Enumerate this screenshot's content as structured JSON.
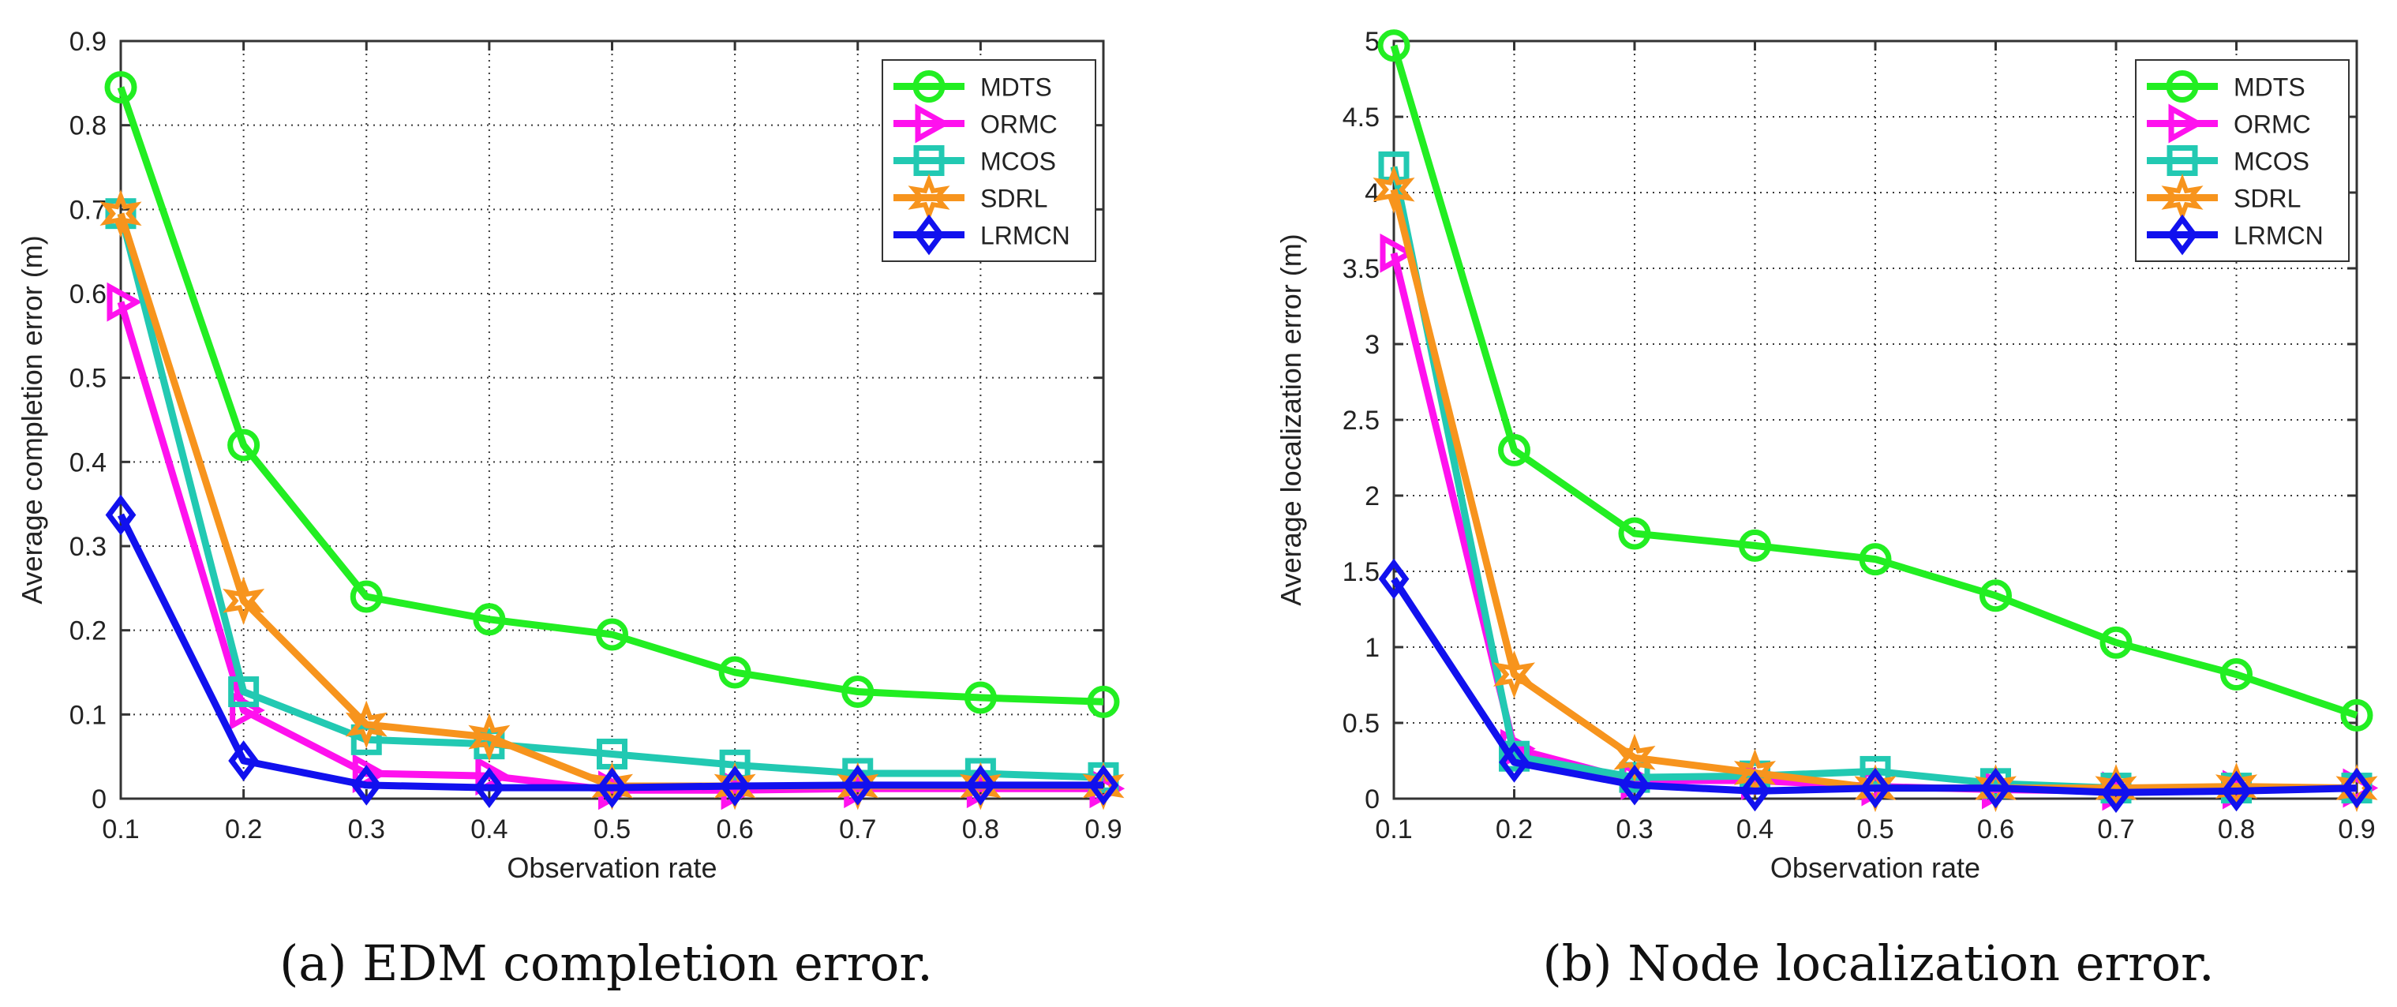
{
  "colors": {
    "MDTS": "#22ee22",
    "ORMC": "#ff11ee",
    "MCOS": "#22c9b2",
    "SDRL": "#f7941d",
    "LRMCN": "#1111ee",
    "grid": "#3a3a3a",
    "axis": "#333333"
  },
  "markers": {
    "MDTS": "circle",
    "ORMC": "triangle-right",
    "MCOS": "square",
    "SDRL": "hexagram",
    "LRMCN": "diamond"
  },
  "chart_data": [
    {
      "type": "line",
      "caption": "(a) EDM completion error.",
      "xlabel": "Observation rate",
      "ylabel": "Average completion error (m)",
      "xlim": [
        0.1,
        0.9
      ],
      "ylim": [
        0,
        0.9
      ],
      "xticks": [
        0.1,
        0.2,
        0.3,
        0.4,
        0.5,
        0.6,
        0.7,
        0.8,
        0.9
      ],
      "xtick_labels": [
        "0.1",
        "0.2",
        "0.3",
        "0.4",
        "0.5",
        "0.6",
        "0.7",
        "0.8",
        "0.9"
      ],
      "yticks": [
        0,
        0.1,
        0.2,
        0.3,
        0.4,
        0.5,
        0.6,
        0.7,
        0.8,
        0.9
      ],
      "ytick_labels": [
        "0",
        "0.1",
        "0.2",
        "0.3",
        "0.4",
        "0.5",
        "0.6",
        "0.7",
        "0.8",
        "0.9"
      ],
      "grid": "dotted",
      "legend_position": "top-right",
      "x": [
        0.1,
        0.2,
        0.3,
        0.4,
        0.5,
        0.6,
        0.7,
        0.8,
        0.9
      ],
      "series": [
        {
          "name": "MDTS",
          "values": [
            0.845,
            0.42,
            0.24,
            0.213,
            0.195,
            0.15,
            0.127,
            0.12,
            0.115
          ]
        },
        {
          "name": "ORMC",
          "values": [
            0.59,
            0.105,
            0.03,
            0.027,
            0.01,
            0.01,
            0.012,
            0.012,
            0.012
          ]
        },
        {
          "name": "MCOS",
          "values": [
            0.695,
            0.127,
            0.07,
            0.065,
            0.053,
            0.04,
            0.03,
            0.03,
            0.025
          ]
        },
        {
          "name": "SDRL",
          "values": [
            0.695,
            0.235,
            0.088,
            0.073,
            0.015,
            0.015,
            0.015,
            0.015,
            0.015
          ]
        },
        {
          "name": "LRMCN",
          "values": [
            0.337,
            0.045,
            0.016,
            0.013,
            0.013,
            0.015,
            0.016,
            0.016,
            0.016
          ]
        }
      ]
    },
    {
      "type": "line",
      "caption": "(b) Node localization error.",
      "xlabel": "Observation rate",
      "ylabel": "Average localization error (m)",
      "xlim": [
        0.1,
        0.9
      ],
      "ylim": [
        0,
        5
      ],
      "xticks": [
        0.1,
        0.2,
        0.3,
        0.4,
        0.5,
        0.6,
        0.7,
        0.8,
        0.9
      ],
      "xtick_labels": [
        "0.1",
        "0.2",
        "0.3",
        "0.4",
        "0.5",
        "0.6",
        "0.7",
        "0.8",
        "0.9"
      ],
      "yticks": [
        0,
        0.5,
        1,
        1.5,
        2,
        2.5,
        3,
        3.5,
        4,
        4.5,
        5
      ],
      "ytick_labels": [
        "0",
        "0.5",
        "1",
        "1.5",
        "2",
        "2.5",
        "3",
        "3.5",
        "4",
        "4.5",
        "5"
      ],
      "grid": "dotted",
      "legend_position": "top-right",
      "x": [
        0.1,
        0.2,
        0.3,
        0.4,
        0.5,
        0.6,
        0.7,
        0.8,
        0.9
      ],
      "series": [
        {
          "name": "MDTS",
          "values": [
            4.97,
            2.3,
            1.75,
            1.67,
            1.58,
            1.34,
            1.03,
            0.82,
            0.55
          ]
        },
        {
          "name": "ORMC",
          "values": [
            3.6,
            0.33,
            0.12,
            0.12,
            0.08,
            0.06,
            0.05,
            0.06,
            0.07
          ]
        },
        {
          "name": "MCOS",
          "values": [
            4.17,
            0.28,
            0.14,
            0.15,
            0.18,
            0.1,
            0.07,
            0.07,
            0.07
          ]
        },
        {
          "name": "SDRL",
          "values": [
            4.02,
            0.82,
            0.27,
            0.17,
            0.07,
            0.07,
            0.07,
            0.08,
            0.07
          ]
        },
        {
          "name": "LRMCN",
          "values": [
            1.45,
            0.24,
            0.09,
            0.05,
            0.07,
            0.07,
            0.04,
            0.05,
            0.07
          ]
        }
      ]
    }
  ]
}
